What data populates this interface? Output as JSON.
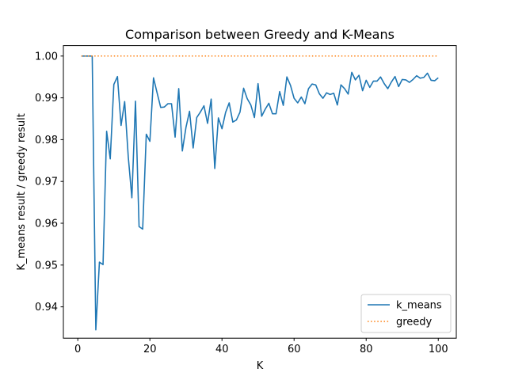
{
  "chart_data": {
    "type": "line",
    "title": "Comparison between Greedy and K-Means",
    "xlabel": "K",
    "ylabel": "K_means result / greedy result",
    "xlim": [
      -4,
      105
    ],
    "ylim": [
      0.9325,
      1.0025
    ],
    "xticks": [
      0,
      20,
      40,
      60,
      80,
      100
    ],
    "yticks": [
      0.94,
      0.95,
      0.96,
      0.97,
      0.98,
      0.99,
      1.0
    ],
    "ytick_labels": [
      "0.94",
      "0.95",
      "0.96",
      "0.97",
      "0.98",
      "0.99",
      "1.00"
    ],
    "grid": false,
    "legend_position": "bottom-right",
    "series": [
      {
        "name": "k_means",
        "color": "#1f77b4",
        "style": "solid",
        "x": [
          1,
          2,
          3,
          4,
          5,
          6,
          7,
          8,
          9,
          10,
          11,
          12,
          13,
          14,
          15,
          16,
          17,
          18,
          19,
          20,
          21,
          22,
          23,
          24,
          25,
          26,
          27,
          28,
          29,
          30,
          31,
          32,
          33,
          34,
          35,
          36,
          37,
          38,
          39,
          40,
          41,
          42,
          43,
          44,
          45,
          46,
          47,
          48,
          49,
          50,
          51,
          52,
          53,
          54,
          55,
          56,
          57,
          58,
          59,
          60,
          61,
          62,
          63,
          64,
          65,
          66,
          67,
          68,
          69,
          70,
          71,
          72,
          73,
          74,
          75,
          76,
          77,
          78,
          79,
          80,
          81,
          82,
          83,
          84,
          85,
          86,
          87,
          88,
          89,
          90,
          91,
          92,
          93,
          94,
          95,
          96,
          97,
          98,
          99,
          100
        ],
        "y": [
          1.0,
          1.0,
          1.0,
          1.0,
          0.9345,
          0.9507,
          0.9501,
          0.982,
          0.9754,
          0.9932,
          0.9951,
          0.9834,
          0.9891,
          0.9759,
          0.9661,
          0.9892,
          0.9592,
          0.9586,
          0.9813,
          0.9796,
          0.9948,
          0.9912,
          0.9877,
          0.9878,
          0.9886,
          0.9886,
          0.9806,
          0.9922,
          0.9773,
          0.9829,
          0.9868,
          0.978,
          0.9853,
          0.9866,
          0.9881,
          0.9839,
          0.9897,
          0.9731,
          0.9852,
          0.9826,
          0.9865,
          0.9888,
          0.9842,
          0.9847,
          0.9866,
          0.9923,
          0.9898,
          0.9883,
          0.9853,
          0.9934,
          0.9856,
          0.9873,
          0.9887,
          0.9862,
          0.9862,
          0.9915,
          0.9882,
          0.995,
          0.993,
          0.9899,
          0.9888,
          0.9902,
          0.9886,
          0.9922,
          0.9933,
          0.9931,
          0.991,
          0.9899,
          0.9912,
          0.9908,
          0.9911,
          0.9883,
          0.9931,
          0.9922,
          0.9909,
          0.9961,
          0.9943,
          0.9954,
          0.9917,
          0.9942,
          0.9925,
          0.994,
          0.994,
          0.995,
          0.9934,
          0.9922,
          0.9938,
          0.9951,
          0.9927,
          0.9944,
          0.9943,
          0.9937,
          0.9944,
          0.9953,
          0.9947,
          0.9949,
          0.9959,
          0.9942,
          0.9941,
          0.9948
        ]
      },
      {
        "name": "greedy",
        "color": "#ff7f0e",
        "style": "dotted",
        "x": [
          1,
          100
        ],
        "y": [
          1.0,
          1.0
        ]
      }
    ]
  }
}
